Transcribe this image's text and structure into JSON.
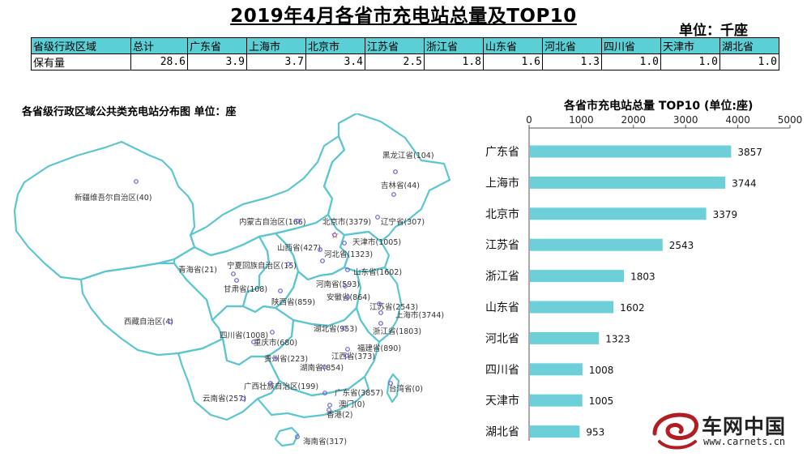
{
  "title": "2019年4月各省市充电站总量及TOP10",
  "unit": "单位：千座",
  "table": {
    "header": [
      "省级行政区域",
      "总计",
      "广东省",
      "上海市",
      "北京市",
      "江苏省",
      "浙江省",
      "山东省",
      "河北省",
      "四川省",
      "天津市",
      "湖北省"
    ],
    "row_label": "保有量",
    "values": [
      "28.6",
      "3.9",
      "3.7",
      "3.4",
      "2.5",
      "1.8",
      "1.6",
      "1.3",
      "1.0",
      "1.0",
      "1.0"
    ]
  },
  "map": {
    "title": "各省级行政区域公共类充电站分布图  单位：座",
    "labels": [
      "黑龙江省(104)",
      "吉林省(44)",
      "新疆维吾尔自治区(40)",
      "内蒙古自治区(166)",
      "北京市(3379)",
      "辽宁省(307)",
      "天津市(1005)",
      "山西省(427)",
      "河北省(1323)",
      "青海省(21)",
      "宁夏回族自治区(15)",
      "山东省(1602)",
      "甘肃省(108)",
      "河南省(593)",
      "陕西省(859)",
      "安徽省(864)",
      "江苏省(2543)",
      "上海市(3744)",
      "西藏自治区(4)",
      "四川省(1008)",
      "湖北省(953)",
      "浙江省(1803)",
      "重庆市(680)",
      "福建省(890)",
      "贵州省(223)",
      "江西省(373)",
      "湖南省(854)",
      "广西壮族自治区(199)",
      "广东省(3857)",
      "台湾省(0)",
      "云南省(257)",
      "澳门(0)",
      "香港(2)",
      "海南省(317)"
    ]
  },
  "chart_data": {
    "type": "bar",
    "orientation": "horizontal",
    "title": "各省市充电站总量 TOP10   (单位:座)",
    "categories": [
      "广东省",
      "上海市",
      "北京市",
      "江苏省",
      "浙江省",
      "山东省",
      "河北省",
      "四川省",
      "天津市",
      "湖北省"
    ],
    "values": [
      3857,
      3744,
      3379,
      2543,
      1803,
      1602,
      1323,
      1008,
      1005,
      953
    ],
    "xlim": [
      0,
      5000
    ],
    "xticks": [
      0,
      1000,
      2000,
      3000,
      4000,
      5000
    ],
    "axis_position": "top",
    "grid": false,
    "bar_color": "#6dcfd8"
  },
  "logo": {
    "name": "车网中国",
    "url": "www.carnets.cn"
  },
  "colors": {
    "table_header": "#5bcfd6",
    "map_outline": "#5cc6cf",
    "marker": "#6b5fd6",
    "capital_star": "#e04040"
  }
}
